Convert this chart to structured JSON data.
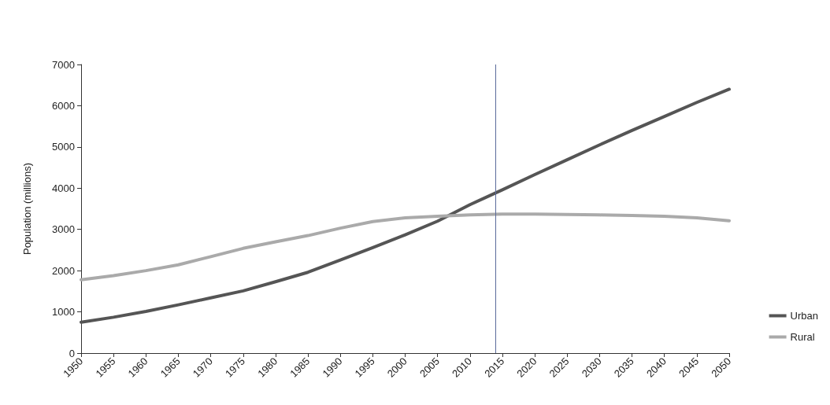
{
  "chart_data": {
    "type": "line",
    "ylabel": "Population (millions)",
    "x": [
      1950,
      1955,
      1960,
      1965,
      1970,
      1975,
      1980,
      1985,
      1990,
      1995,
      2000,
      2005,
      2010,
      2015,
      2020,
      2025,
      2030,
      2035,
      2040,
      2045,
      2050
    ],
    "series": [
      {
        "name": "Urban",
        "color": "#555555",
        "values": [
          750,
          870,
          1010,
          1170,
          1340,
          1510,
          1730,
          1960,
          2260,
          2560,
          2870,
          3200,
          3600,
          3960,
          4330,
          4690,
          5050,
          5400,
          5740,
          6080,
          6400
        ]
      },
      {
        "name": "Rural",
        "color": "#aaaaaa",
        "values": [
          1780,
          1880,
          2000,
          2140,
          2340,
          2540,
          2700,
          2850,
          3030,
          3190,
          3280,
          3320,
          3350,
          3370,
          3370,
          3360,
          3350,
          3340,
          3320,
          3280,
          3210
        ]
      }
    ],
    "xlim": [
      1950,
      2050
    ],
    "xticks": [
      1950,
      1955,
      1960,
      1965,
      1970,
      1975,
      1980,
      1985,
      1990,
      1995,
      2000,
      2005,
      2010,
      2015,
      2020,
      2025,
      2030,
      2035,
      2040,
      2045,
      2050
    ],
    "ylim": [
      0,
      7000
    ],
    "yticks": [
      0,
      1000,
      2000,
      3000,
      4000,
      5000,
      6000,
      7000
    ],
    "ref_lines": [
      {
        "axis": "x",
        "value": 2014,
        "color": "#5a6a9a"
      }
    ],
    "grid": false,
    "legend": "bottom right",
    "marker": "none",
    "line_style": "solid"
  }
}
